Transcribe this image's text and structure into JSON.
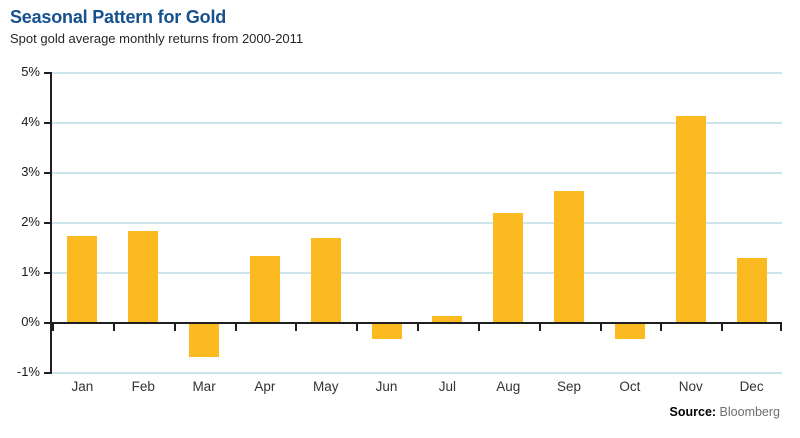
{
  "chart_data": {
    "type": "bar",
    "title": "Seasonal Pattern for Gold",
    "subtitle": "Spot gold average monthly returns from 2000-2011",
    "categories": [
      "Jan",
      "Feb",
      "Mar",
      "Apr",
      "May",
      "Jun",
      "Jul",
      "Aug",
      "Sep",
      "Oct",
      "Nov",
      "Dec"
    ],
    "values": [
      1.75,
      1.85,
      -0.65,
      1.35,
      1.7,
      -0.3,
      0.15,
      2.2,
      2.65,
      -0.3,
      4.15,
      1.3
    ],
    "unit": "%",
    "xlabel": "",
    "ylabel": "",
    "ylim": [
      -1,
      5
    ],
    "y_ticks": [
      5,
      4,
      3,
      2,
      1,
      0,
      -1
    ],
    "y_tick_labels": [
      "5%",
      "4%",
      "3%",
      "2%",
      "1%",
      "0%",
      "-1%"
    ],
    "grid": true,
    "legend": "none"
  },
  "source": {
    "label": "Source:",
    "value": "Bloomberg"
  },
  "colors": {
    "title-color": "#15518F",
    "bar-color": "#FBBA20",
    "grid-color": "#CDE4EC",
    "axis-color": "#1F1F1F",
    "source-gray": "#6E6E6E"
  }
}
